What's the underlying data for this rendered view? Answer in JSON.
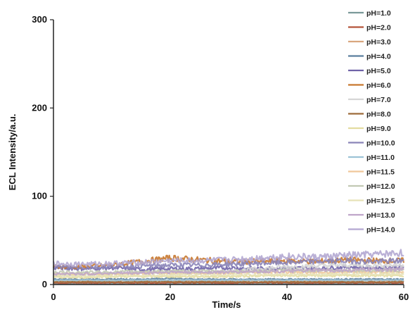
{
  "chart_data": {
    "type": "line",
    "title": "",
    "xlabel": "Time/s",
    "ylabel": "ECL Intensity/a.u.",
    "xlim": [
      0,
      60
    ],
    "ylim": [
      0,
      300
    ],
    "x_ticks": [
      0,
      20,
      40,
      60
    ],
    "y_ticks": [
      0,
      100,
      200,
      300
    ],
    "grid": false,
    "legend_position": "right",
    "x": [
      0,
      5,
      10,
      15,
      20,
      25,
      30,
      35,
      40,
      45,
      50,
      55,
      60
    ],
    "series": [
      {
        "name": "pH=1.0",
        "color": "#7a9a9a",
        "values": [
          1,
          1,
          1,
          1,
          1,
          1,
          1,
          1,
          1,
          1,
          1,
          1,
          1
        ]
      },
      {
        "name": "pH=2.0",
        "color": "#b5553a",
        "values": [
          2,
          2,
          2,
          2,
          2,
          2,
          2,
          2,
          2,
          2,
          2,
          2,
          2
        ]
      },
      {
        "name": "pH=3.0",
        "color": "#d9a77f",
        "values": [
          4,
          4,
          5,
          4,
          4,
          4,
          4,
          5,
          4,
          4,
          4,
          5,
          4
        ]
      },
      {
        "name": "pH=4.0",
        "color": "#5b7f9e",
        "values": [
          6,
          6,
          6,
          6,
          7,
          6,
          6,
          6,
          6,
          6,
          6,
          6,
          6
        ]
      },
      {
        "name": "pH=5.0",
        "color": "#6f63a8",
        "values": [
          19,
          18,
          19,
          17,
          18,
          18,
          19,
          18,
          19,
          18,
          20,
          19,
          20
        ]
      },
      {
        "name": "pH=6.0",
        "color": "#c8782f",
        "values": [
          20,
          20,
          22,
          26,
          30,
          28,
          26,
          26,
          27,
          26,
          28,
          27,
          27
        ]
      },
      {
        "name": "pH=7.0",
        "color": "#d6d6d6",
        "values": [
          10,
          11,
          12,
          13,
          14,
          14,
          15,
          18,
          20,
          21,
          22,
          22,
          22
        ]
      },
      {
        "name": "pH=8.0",
        "color": "#9c6a3a",
        "values": [
          3,
          3,
          3,
          3,
          3,
          3,
          3,
          3,
          3,
          3,
          3,
          3,
          3
        ]
      },
      {
        "name": "pH=9.0",
        "color": "#e3dca0",
        "values": [
          8,
          8,
          9,
          9,
          9,
          9,
          9,
          10,
          10,
          10,
          10,
          10,
          10
        ]
      },
      {
        "name": "pH=10.0",
        "color": "#8a84b8",
        "values": [
          20,
          19,
          20,
          21,
          22,
          22,
          23,
          24,
          25,
          26,
          27,
          26,
          27
        ]
      },
      {
        "name": "pH=11.0",
        "color": "#9cc3d6",
        "values": [
          5,
          5,
          5,
          5,
          5,
          5,
          5,
          5,
          5,
          5,
          5,
          5,
          5
        ]
      },
      {
        "name": "pH=11.5",
        "color": "#f0c89a",
        "values": [
          12,
          12,
          12,
          13,
          13,
          13,
          13,
          14,
          14,
          14,
          14,
          14,
          14
        ]
      },
      {
        "name": "pH=12.0",
        "color": "#c2c9b4",
        "values": [
          14,
          14,
          14,
          15,
          15,
          15,
          15,
          15,
          16,
          16,
          16,
          16,
          16
        ]
      },
      {
        "name": "pH=12.5",
        "color": "#e6e2b8",
        "values": [
          10,
          10,
          10,
          10,
          11,
          11,
          11,
          11,
          11,
          11,
          12,
          12,
          12
        ]
      },
      {
        "name": "pH=13.0",
        "color": "#bfa6c9",
        "values": [
          12,
          12,
          13,
          13,
          14,
          14,
          14,
          15,
          15,
          16,
          16,
          17,
          17
        ]
      },
      {
        "name": "pH=14.0",
        "color": "#b3a7d1",
        "values": [
          24,
          23,
          24,
          25,
          27,
          27,
          28,
          30,
          32,
          31,
          33,
          34,
          36
        ]
      }
    ]
  }
}
